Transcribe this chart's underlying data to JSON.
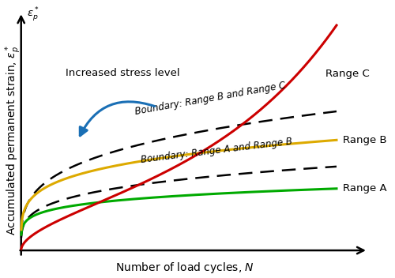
{
  "xlabel": "Number of load cycles, $N$",
  "ylabel": "Accumulated permanent strain, $\\varepsilon^*_p$",
  "bg_color": "#ffffff",
  "range_A_color": "#00aa00",
  "range_A_label": "Range A",
  "range_B_color": "#ddaa00",
  "range_B_label": "Range B",
  "range_C_color": "#cc0000",
  "range_C_label": "Range C",
  "boundary_color": "#000000",
  "boundary_AB_label": "Boundary: Range A and Range B",
  "boundary_BC_label": "Boundary: Range B and Range C",
  "arrow_text": "Increased stress level",
  "arrow_color": "#1a6fb5",
  "label_fontsize": 10,
  "annotation_fontsize": 9.5
}
